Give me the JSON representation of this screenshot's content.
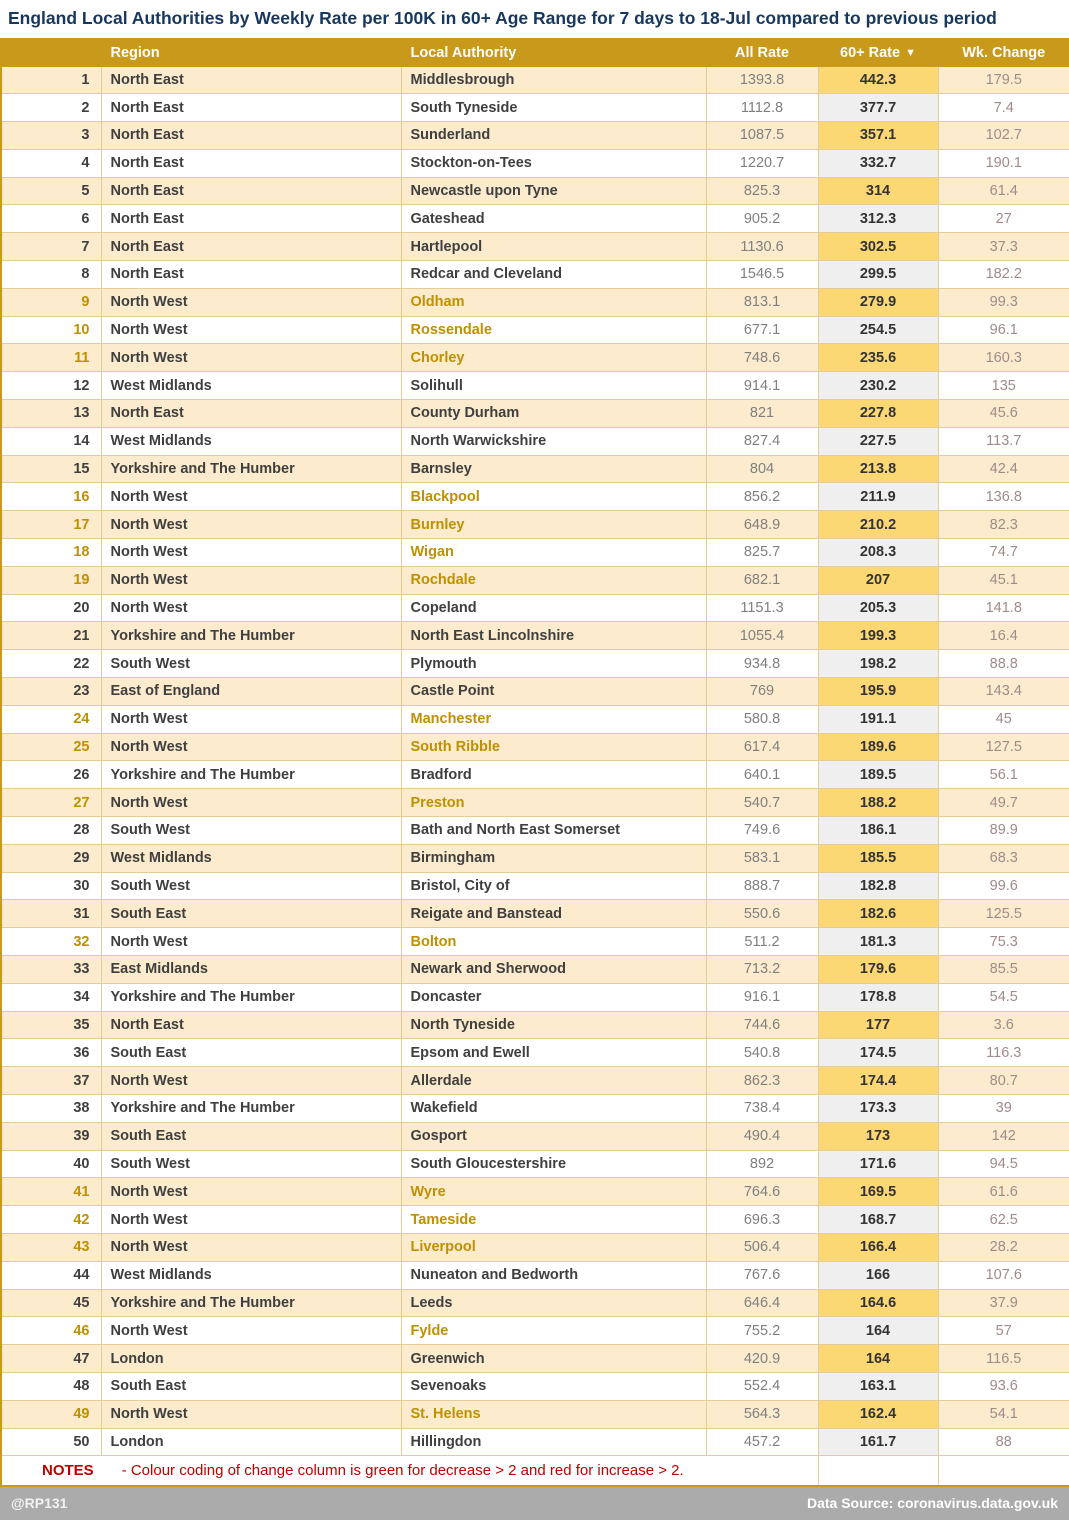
{
  "title": "England Local Authorities by Weekly Rate per 100K in 60+ Age Range for 7 days to 18-Jul compared to previous period",
  "chart_data": {
    "type": "table",
    "title": "England Local Authorities by Weekly Rate per 100K in 60+ Age Range for 7 days to 18-Jul compared to previous period",
    "columns": [
      "",
      "Region",
      "Local Authority",
      "All Rate",
      "60+ Rate",
      "Wk. Change"
    ],
    "sort": {
      "column": "60+ Rate",
      "direction": "descending",
      "icon": "▼"
    },
    "highlighted_ranks": [
      9,
      10,
      11,
      16,
      17,
      18,
      19,
      24,
      25,
      27,
      32,
      41,
      42,
      43,
      46,
      49
    ],
    "rows": [
      [
        "1",
        "North East",
        "Middlesbrough",
        "1393.8",
        "442.3",
        "179.5"
      ],
      [
        "2",
        "North East",
        "South Tyneside",
        "1112.8",
        "377.7",
        "7.4"
      ],
      [
        "3",
        "North East",
        "Sunderland",
        "1087.5",
        "357.1",
        "102.7"
      ],
      [
        "4",
        "North East",
        "Stockton-on-Tees",
        "1220.7",
        "332.7",
        "190.1"
      ],
      [
        "5",
        "North East",
        "Newcastle upon Tyne",
        "825.3",
        "314",
        "61.4"
      ],
      [
        "6",
        "North East",
        "Gateshead",
        "905.2",
        "312.3",
        "27"
      ],
      [
        "7",
        "North East",
        "Hartlepool",
        "1130.6",
        "302.5",
        "37.3"
      ],
      [
        "8",
        "North East",
        "Redcar and Cleveland",
        "1546.5",
        "299.5",
        "182.2"
      ],
      [
        "9",
        "North West",
        "Oldham",
        "813.1",
        "279.9",
        "99.3"
      ],
      [
        "10",
        "North West",
        "Rossendale",
        "677.1",
        "254.5",
        "96.1"
      ],
      [
        "11",
        "North West",
        "Chorley",
        "748.6",
        "235.6",
        "160.3"
      ],
      [
        "12",
        "West Midlands",
        "Solihull",
        "914.1",
        "230.2",
        "135"
      ],
      [
        "13",
        "North East",
        "County Durham",
        "821",
        "227.8",
        "45.6"
      ],
      [
        "14",
        "West Midlands",
        "North Warwickshire",
        "827.4",
        "227.5",
        "113.7"
      ],
      [
        "15",
        "Yorkshire and The Humber",
        "Barnsley",
        "804",
        "213.8",
        "42.4"
      ],
      [
        "16",
        "North West",
        "Blackpool",
        "856.2",
        "211.9",
        "136.8"
      ],
      [
        "17",
        "North West",
        "Burnley",
        "648.9",
        "210.2",
        "82.3"
      ],
      [
        "18",
        "North West",
        "Wigan",
        "825.7",
        "208.3",
        "74.7"
      ],
      [
        "19",
        "North West",
        "Rochdale",
        "682.1",
        "207",
        "45.1"
      ],
      [
        "20",
        "North West",
        "Copeland",
        "1151.3",
        "205.3",
        "141.8"
      ],
      [
        "21",
        "Yorkshire and The Humber",
        "North East Lincolnshire",
        "1055.4",
        "199.3",
        "16.4"
      ],
      [
        "22",
        "South West",
        "Plymouth",
        "934.8",
        "198.2",
        "88.8"
      ],
      [
        "23",
        "East of England",
        "Castle Point",
        "769",
        "195.9",
        "143.4"
      ],
      [
        "24",
        "North West",
        "Manchester",
        "580.8",
        "191.1",
        "45"
      ],
      [
        "25",
        "North West",
        "South Ribble",
        "617.4",
        "189.6",
        "127.5"
      ],
      [
        "26",
        "Yorkshire and The Humber",
        "Bradford",
        "640.1",
        "189.5",
        "56.1"
      ],
      [
        "27",
        "North West",
        "Preston",
        "540.7",
        "188.2",
        "49.7"
      ],
      [
        "28",
        "South West",
        "Bath and North East Somerset",
        "749.6",
        "186.1",
        "89.9"
      ],
      [
        "29",
        "West Midlands",
        "Birmingham",
        "583.1",
        "185.5",
        "68.3"
      ],
      [
        "30",
        "South West",
        "Bristol, City of",
        "888.7",
        "182.8",
        "99.6"
      ],
      [
        "31",
        "South East",
        "Reigate and Banstead",
        "550.6",
        "182.6",
        "125.5"
      ],
      [
        "32",
        "North West",
        "Bolton",
        "511.2",
        "181.3",
        "75.3"
      ],
      [
        "33",
        "East Midlands",
        "Newark and Sherwood",
        "713.2",
        "179.6",
        "85.5"
      ],
      [
        "34",
        "Yorkshire and The Humber",
        "Doncaster",
        "916.1",
        "178.8",
        "54.5"
      ],
      [
        "35",
        "North East",
        "North Tyneside",
        "744.6",
        "177",
        "3.6"
      ],
      [
        "36",
        "South East",
        "Epsom and Ewell",
        "540.8",
        "174.5",
        "116.3"
      ],
      [
        "37",
        "North West",
        "Allerdale",
        "862.3",
        "174.4",
        "80.7"
      ],
      [
        "38",
        "Yorkshire and The Humber",
        "Wakefield",
        "738.4",
        "173.3",
        "39"
      ],
      [
        "39",
        "South East",
        "Gosport",
        "490.4",
        "173",
        "142"
      ],
      [
        "40",
        "South West",
        "South Gloucestershire",
        "892",
        "171.6",
        "94.5"
      ],
      [
        "41",
        "North West",
        "Wyre",
        "764.6",
        "169.5",
        "61.6"
      ],
      [
        "42",
        "North West",
        "Tameside",
        "696.3",
        "168.7",
        "62.5"
      ],
      [
        "43",
        "North West",
        "Liverpool",
        "506.4",
        "166.4",
        "28.2"
      ],
      [
        "44",
        "West Midlands",
        "Nuneaton and Bedworth",
        "767.6",
        "166",
        "107.6"
      ],
      [
        "45",
        "Yorkshire and The Humber",
        "Leeds",
        "646.4",
        "164.6",
        "37.9"
      ],
      [
        "46",
        "North West",
        "Fylde",
        "755.2",
        "164",
        "57"
      ],
      [
        "47",
        "London",
        "Greenwich",
        "420.9",
        "164",
        "116.5"
      ],
      [
        "48",
        "South East",
        "Sevenoaks",
        "552.4",
        "163.1",
        "93.6"
      ],
      [
        "49",
        "North West",
        "St. Helens",
        "564.3",
        "162.4",
        "54.1"
      ],
      [
        "50",
        "London",
        "Hillingdon",
        "457.2",
        "161.7",
        "88"
      ]
    ]
  },
  "notes": {
    "label": "NOTES",
    "text": "- Colour coding of change column is green for decrease > 2 and red for increase > 2."
  },
  "footer": {
    "left": "@RP131",
    "right": "Data Source: coronavirus.data.gov.uk"
  },
  "colors": {
    "header_gold": "#C9991C",
    "row_cream": "#FCEBCD",
    "rate60_highlight_gold": "#FBD874",
    "rate60_gray": "#EFEFEF",
    "change_increase_pink": "#F8CBCD",
    "highlight_text_gold": "#BF9000",
    "title_navy": "#17375E",
    "notes_red": "#C00000",
    "footer_gray": "#ABABAB"
  }
}
